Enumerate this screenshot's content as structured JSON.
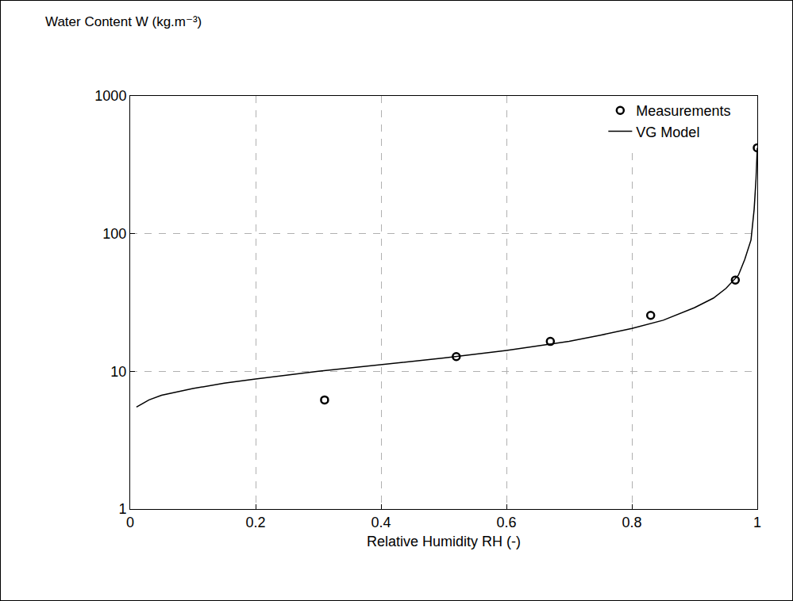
{
  "chart_data": {
    "type": "scatter",
    "ylabel": "Water Content W (kg.m⁻³)",
    "xlabel": "Relative Humidity RH (-)",
    "series": [
      {
        "name": "Measurements",
        "type": "scatter",
        "marker": "circle-open",
        "color": "#000000",
        "x": [
          0.31,
          0.52,
          0.67,
          0.83,
          0.965,
          1.0
        ],
        "values": [
          6.2,
          12.8,
          16.5,
          25.5,
          46,
          420
        ]
      },
      {
        "name": "VG Model",
        "type": "line",
        "line_style": "solid",
        "color": "#000000",
        "x": [
          0.01,
          0.03,
          0.05,
          0.1,
          0.15,
          0.2,
          0.3,
          0.4,
          0.5,
          0.6,
          0.7,
          0.75,
          0.8,
          0.85,
          0.9,
          0.93,
          0.95,
          0.97,
          0.98,
          0.99,
          0.995,
          0.998,
          1.0
        ],
        "values": [
          5.5,
          6.2,
          6.7,
          7.5,
          8.2,
          8.8,
          10,
          11.2,
          12.5,
          14.2,
          16.5,
          18.3,
          20.5,
          23.5,
          29,
          34,
          40,
          50,
          65,
          90,
          150,
          250,
          420
        ]
      }
    ],
    "xlim": [
      0,
      1
    ],
    "xticks": [
      0,
      0.2,
      0.4,
      0.6,
      0.8,
      1
    ],
    "ylim": [
      1,
      1000
    ],
    "yticks": [
      1,
      10,
      100,
      1000
    ],
    "log": "y",
    "grid": true,
    "legend": "top right"
  }
}
